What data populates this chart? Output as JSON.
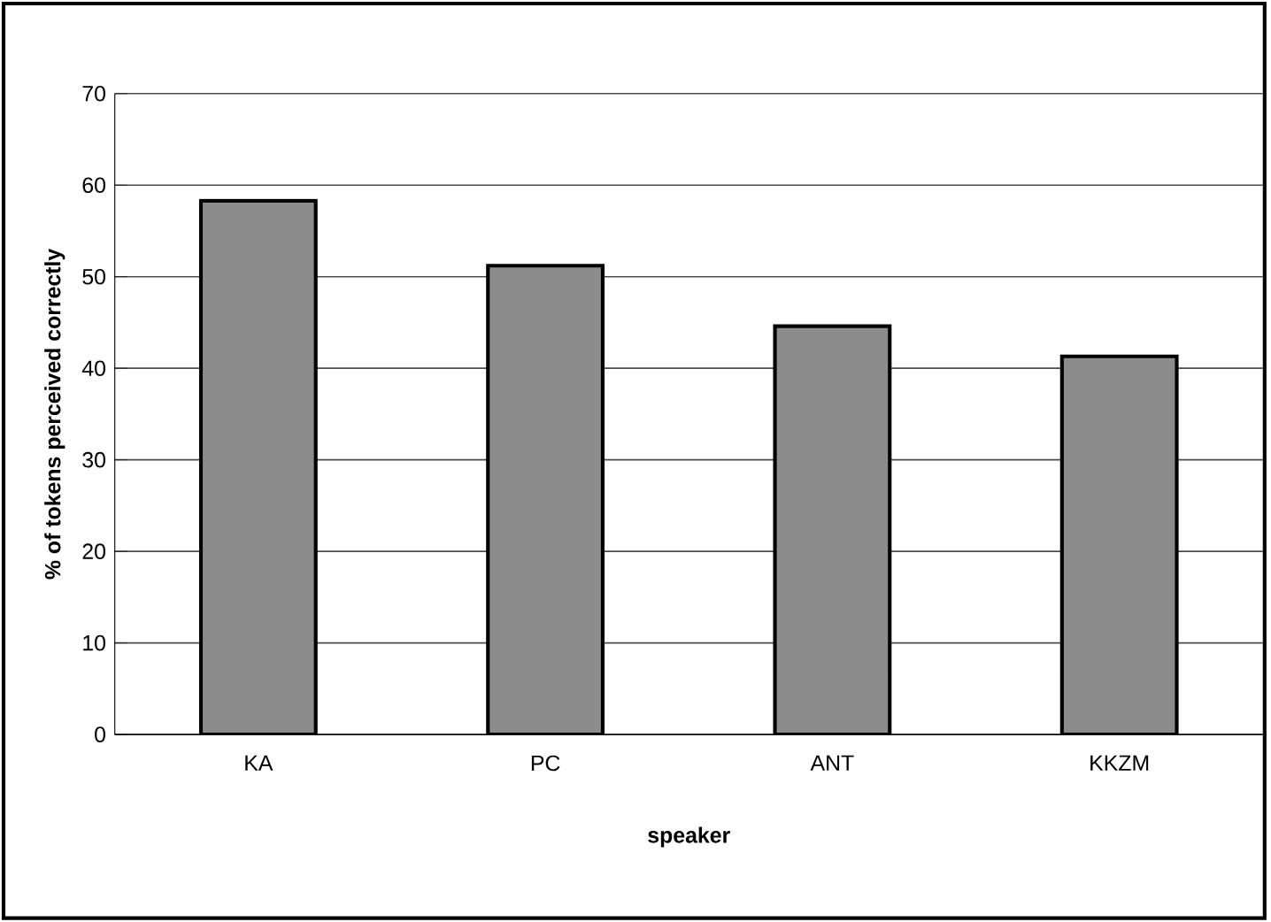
{
  "chart_data": {
    "type": "bar",
    "xlabel": "speaker",
    "ylabel": "% of tokens perceived correctly",
    "categories": [
      "KA",
      "PC",
      "ANT",
      "KKZM"
    ],
    "values": [
      58.3,
      51.2,
      44.6,
      41.3
    ],
    "color": "#8c8c8c",
    "ylim": [
      0,
      70
    ],
    "yticks": [
      0,
      10,
      20,
      30,
      40,
      50,
      60,
      70
    ],
    "grid": "y"
  }
}
